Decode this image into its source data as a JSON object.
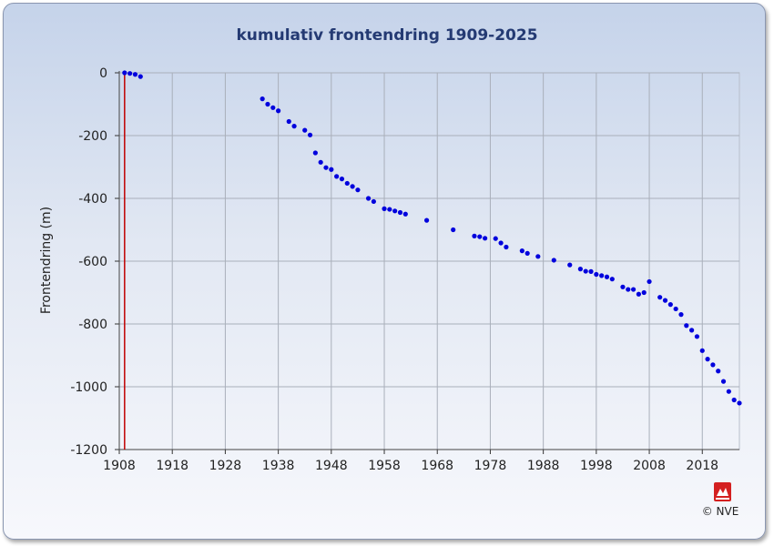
{
  "chart_data": {
    "type": "scatter",
    "title": "kumulativ frontendring 1909-2025",
    "ylabel": "Frontendring (m)",
    "xlabel": "",
    "xlim": [
      1908,
      2025
    ],
    "ylim": [
      -1200,
      0
    ],
    "x_ticks": [
      1908,
      1918,
      1928,
      1938,
      1948,
      1958,
      1968,
      1978,
      1988,
      1998,
      2008,
      2018
    ],
    "y_ticks": [
      0,
      -200,
      -400,
      -600,
      -800,
      -1000,
      -1200
    ],
    "grid": true,
    "marker_color": "#0000dd",
    "baseline_color": "#c00000",
    "series": [
      {
        "points": [
          [
            1909,
            0
          ],
          [
            1910,
            -2
          ],
          [
            1911,
            -5
          ],
          [
            1912,
            -12
          ],
          [
            1935,
            -83
          ],
          [
            1936,
            -100
          ],
          [
            1937,
            -111
          ],
          [
            1938,
            -121
          ],
          [
            1940,
            -155
          ],
          [
            1941,
            -170
          ],
          [
            1943,
            -183
          ],
          [
            1944,
            -198
          ],
          [
            1945,
            -255
          ],
          [
            1946,
            -285
          ],
          [
            1947,
            -302
          ],
          [
            1948,
            -308
          ],
          [
            1949,
            -330
          ],
          [
            1950,
            -338
          ],
          [
            1951,
            -352
          ],
          [
            1952,
            -362
          ],
          [
            1953,
            -373
          ],
          [
            1955,
            -400
          ],
          [
            1956,
            -410
          ],
          [
            1958,
            -433
          ],
          [
            1959,
            -435
          ],
          [
            1960,
            -440
          ],
          [
            1961,
            -445
          ],
          [
            1962,
            -450
          ],
          [
            1966,
            -470
          ],
          [
            1971,
            -500
          ],
          [
            1975,
            -520
          ],
          [
            1976,
            -522
          ],
          [
            1977,
            -527
          ],
          [
            1979,
            -528
          ],
          [
            1980,
            -542
          ],
          [
            1981,
            -555
          ],
          [
            1984,
            -567
          ],
          [
            1985,
            -575
          ],
          [
            1987,
            -585
          ],
          [
            1990,
            -597
          ],
          [
            1993,
            -612
          ],
          [
            1995,
            -625
          ],
          [
            1996,
            -632
          ],
          [
            1997,
            -633
          ],
          [
            1998,
            -642
          ],
          [
            1999,
            -646
          ],
          [
            2000,
            -650
          ],
          [
            2001,
            -657
          ],
          [
            2003,
            -682
          ],
          [
            2004,
            -690
          ],
          [
            2005,
            -690
          ],
          [
            2006,
            -705
          ],
          [
            2007,
            -700
          ],
          [
            2008,
            -665
          ],
          [
            2010,
            -715
          ],
          [
            2011,
            -725
          ],
          [
            2012,
            -738
          ],
          [
            2013,
            -752
          ],
          [
            2014,
            -770
          ],
          [
            2015,
            -805
          ],
          [
            2016,
            -820
          ],
          [
            2017,
            -840
          ],
          [
            2018,
            -885
          ],
          [
            2019,
            -912
          ],
          [
            2020,
            -930
          ],
          [
            2021,
            -950
          ],
          [
            2022,
            -983
          ],
          [
            2023,
            -1015
          ],
          [
            2024,
            -1042
          ],
          [
            2025,
            -1052
          ]
        ]
      }
    ]
  },
  "logo": {
    "icon": "nve-crest-icon",
    "crest_color": "#d42020",
    "copyright": "© NVE"
  }
}
